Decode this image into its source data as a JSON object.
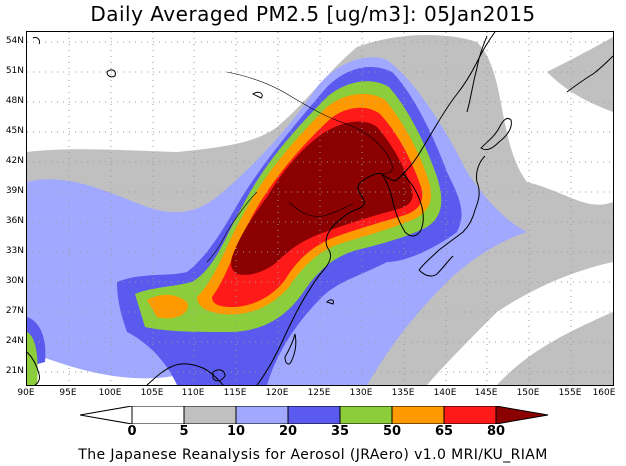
{
  "title": "Daily Averaged PM2.5 [ug/m3]: 05Jan2015",
  "footer": "The Japanese Reanalysis for Aerosol (JRAero) v1.0 MRI/KU_RIAM",
  "map": {
    "lat_labels": [
      "54N",
      "51N",
      "48N",
      "45N",
      "42N",
      "39N",
      "36N",
      "33N",
      "30N",
      "27N",
      "24N",
      "21N"
    ],
    "lon_labels": [
      "90E",
      "95E",
      "100E",
      "105E",
      "110E",
      "115E",
      "120E",
      "125E",
      "130E",
      "135E",
      "140E",
      "145E",
      "150E",
      "155E",
      "160E"
    ],
    "lon_range": [
      90,
      160
    ],
    "lat_range": [
      19.5,
      55.5
    ]
  },
  "colorbar": {
    "levels": [
      "0",
      "5",
      "10",
      "20",
      "35",
      "50",
      "65",
      "80"
    ],
    "colors": [
      "#ffffff",
      "#c0c0c0",
      "#a0a8ff",
      "#5a5aee",
      "#8ccd3c",
      "#ff9900",
      "#ff1a1a",
      "#8b0000"
    ]
  }
}
